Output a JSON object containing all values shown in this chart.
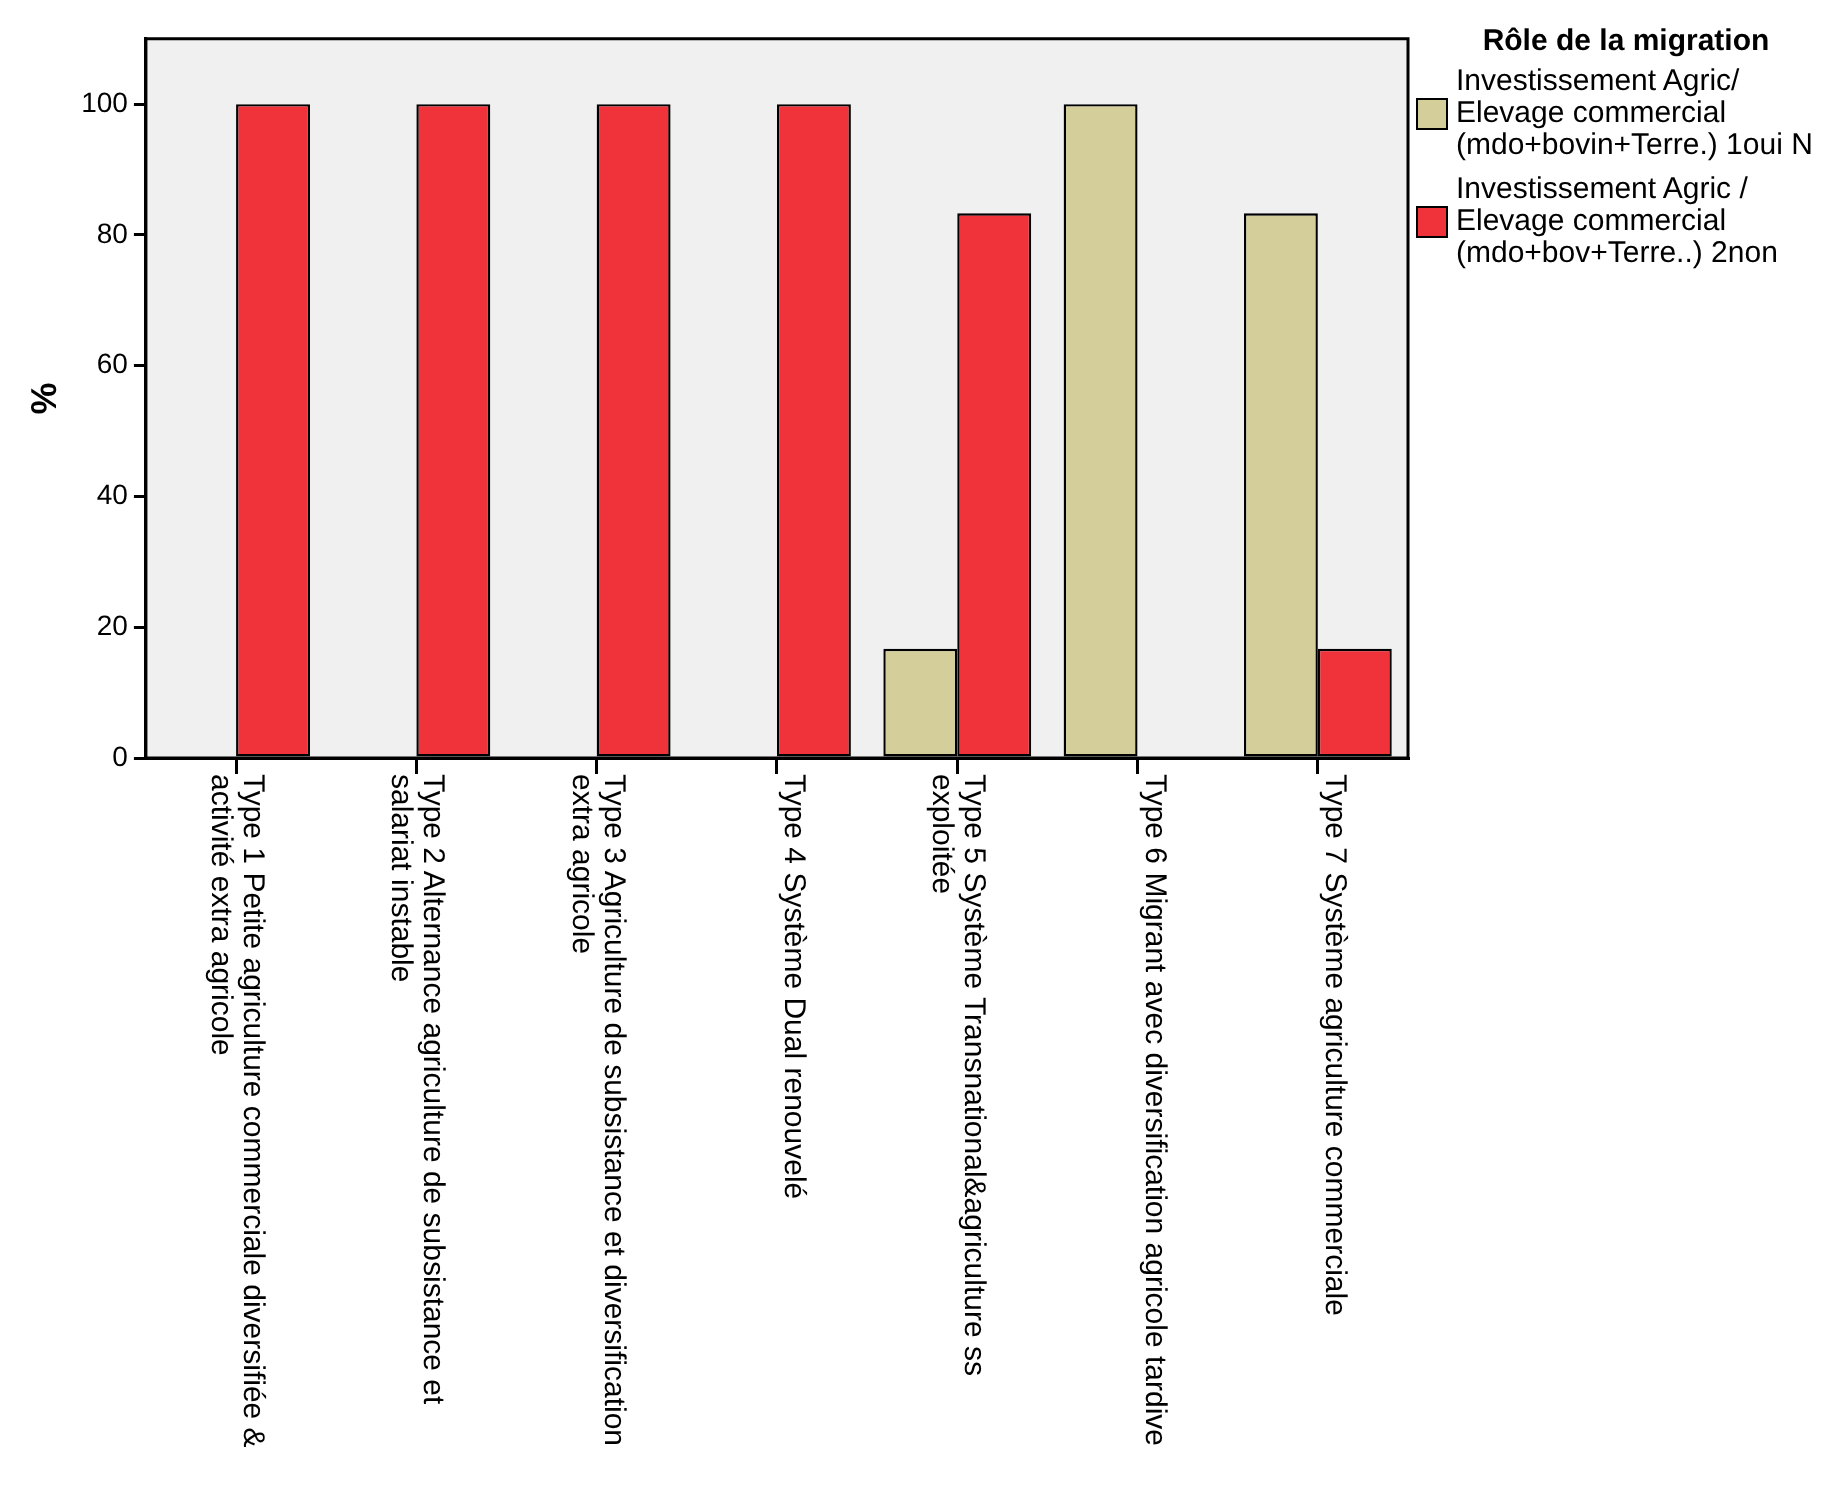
{
  "chart_data": {
    "type": "bar",
    "ylabel": "%",
    "legend_title": "Rôle de la migration",
    "legend": "right",
    "categories": [
      "Type 1 Petite agriculture commerciale diversifiée & activité extra agricole",
      "Type 2 Alternance agriculture de subsistance et salariat instable",
      "Type 3 Agriculture de subsistance et diversification extra agricole",
      "Type 4 Système Dual renouvelé",
      "Type 5 Système Transnational&agriculture ss exploitée",
      "Type 6 Migrant avec diversification agricole tardive",
      "Type 7 Système agriculture commerciale"
    ],
    "series": [
      {
        "name": "Investissement Agric/ Elevage commercial (mdo+bovin+Terre.) 1oui N",
        "color": "#d3ce9a",
        "values": [
          0,
          0,
          0,
          0,
          16.7,
          100,
          83.3
        ]
      },
      {
        "name": "Investissement Agric / Elevage commercial (mdo+bov+Terre..) 2non",
        "color": "#f0323a",
        "values": [
          100,
          100,
          100,
          100,
          83.3,
          0,
          16.7
        ]
      }
    ],
    "ylim": [
      0,
      110
    ],
    "yticks": [
      0,
      20,
      40,
      60,
      80,
      100
    ],
    "grid": false
  }
}
